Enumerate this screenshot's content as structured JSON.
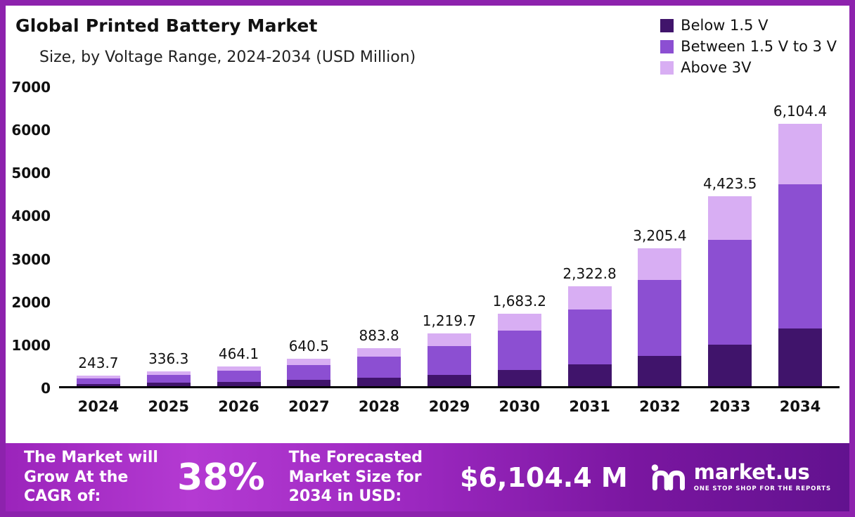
{
  "header": {
    "title": "Global Printed Battery Market",
    "subtitle": "Size, by Voltage Range, 2024-2034 (USD Million)"
  },
  "chart_data": {
    "type": "bar",
    "stacked": true,
    "title": "Global Printed Battery Market Size, by Voltage Range, 2024-2034 (USD Million)",
    "xlabel": "",
    "ylabel": "",
    "ylim": [
      0,
      7000
    ],
    "ytick_step": 1000,
    "grid": false,
    "legend_position": "top-right",
    "categories": [
      "2024",
      "2025",
      "2026",
      "2027",
      "2028",
      "2029",
      "2030",
      "2031",
      "2032",
      "2033",
      "2034"
    ],
    "series": [
      {
        "name": "Below 1.5 V",
        "color": "#40146b",
        "values": [
          53.6,
          74.0,
          102.1,
          140.9,
          194.4,
          268.3,
          370.3,
          511.0,
          705.2,
          973.2,
          1343.0
        ]
      },
      {
        "name": "Between 1.5 V to 3 V",
        "color": "#8c4fd2",
        "values": [
          134.0,
          185.0,
          255.3,
          352.3,
          486.1,
          670.8,
          925.8,
          1277.5,
          1763.0,
          2432.9,
          3357.4
        ]
      },
      {
        "name": "Above 3V",
        "color": "#d8aef3",
        "values": [
          56.1,
          77.3,
          106.7,
          147.3,
          203.3,
          280.6,
          387.1,
          534.3,
          737.2,
          1017.4,
          1404.0
        ]
      }
    ],
    "totals": [
      243.7,
      336.3,
      464.1,
      640.5,
      883.8,
      1219.7,
      1683.2,
      2322.8,
      3205.4,
      4423.5,
      6104.4
    ],
    "total_labels": [
      "243.7",
      "336.3",
      "464.1",
      "640.5",
      "883.8",
      "1,219.7",
      "1,683.2",
      "2,322.8",
      "3,205.4",
      "4,423.5",
      "6,104.4"
    ]
  },
  "banner": {
    "cagr_label": "The Market will Grow At the CAGR of:",
    "cagr_value": "38%",
    "forecast_label": "The Forecasted Market Size for 2034 in USD:",
    "forecast_value": "$6,104.4 M",
    "logo_text": "market.us",
    "logo_tagline": "ONE STOP SHOP FOR THE REPORTS"
  },
  "colors": {
    "frame": "#8d22ad",
    "axis": "#000000",
    "text": "#111111",
    "banner_gradient": [
      "#9b24bb",
      "#b43ad2",
      "#62128f"
    ]
  }
}
